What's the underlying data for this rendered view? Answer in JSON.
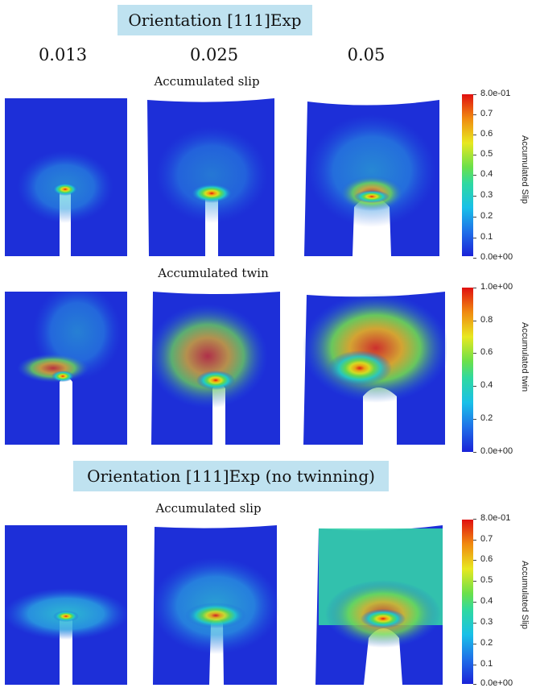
{
  "header": {
    "title": "Orientation [111]Exp",
    "strains": [
      "0.013",
      "0.025",
      "0.05"
    ]
  },
  "section2": {
    "title": "Orientation [111]Exp  (no twinning)"
  },
  "rows": [
    {
      "title": "Accumulated slip",
      "colorbar": {
        "title": "Accumulated Slip",
        "ticks": [
          "8.0e-01",
          "0.7",
          "0.6",
          "0.5",
          "0.4",
          "0.3",
          "0.2",
          "0.1",
          "0.0e+00"
        ]
      }
    },
    {
      "title": "Accumulated twin",
      "colorbar": {
        "title": "Accumulated twin",
        "ticks": [
          "1.0e+00",
          "0.8",
          "0.6",
          "0.4",
          "0.2",
          "0.0e+00"
        ]
      }
    },
    {
      "title": "Accumulated slip",
      "colorbar": {
        "title": "Accumulated Slip",
        "ticks": [
          "8.0e-01",
          "0.7",
          "0.6",
          "0.5",
          "0.4",
          "0.3",
          "0.2",
          "0.1",
          "0.0e+00"
        ]
      }
    }
  ],
  "colors": {
    "title_box": "#bfe2f0",
    "low": "#1a3fd6",
    "high": "#e01010"
  }
}
